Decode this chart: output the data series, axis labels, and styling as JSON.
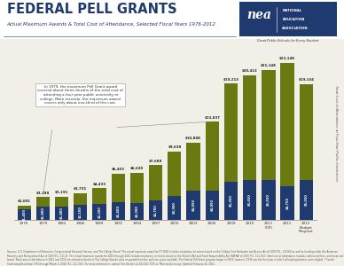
{
  "years": [
    "1976",
    "1979",
    "1982",
    "1986",
    "1989",
    "1991",
    "1994",
    "1997",
    "2000",
    "2003",
    "2006",
    "2009",
    "2010",
    "2011\n(CR)",
    "2011",
    "2012\nBudget\nRequest"
  ],
  "pell_max": [
    1400,
    1800,
    1800,
    2100,
    2200,
    2400,
    2300,
    2700,
    3300,
    4050,
    4050,
    5350,
    5550,
    5550,
    4750,
    5550
  ],
  "cost_total": [
    2001,
    3188,
    3191,
    3731,
    4433,
    6453,
    6630,
    7688,
    9638,
    10888,
    13837,
    19213,
    20413,
    21148,
    22148,
    19134
  ],
  "bar_color_pell": "#1e3a6e",
  "bar_color_cost": "#6b7a10",
  "bg_color": "#f2f0e6",
  "title": "FEDERAL PELL GRANTS",
  "subtitle": "Actual Maximum Awards & Total Cost of Attendance, Selected Fiscal Years 1976-2012",
  "annotation_text": "In 1979, the maximum Pell Grant award\ncovered about three-fourths of the total cost of\nattending a four-year public university or\ncollege. More recently, the maximum award\ncovers only about one-third of the cost.",
  "ylabel_right": "Total Cost of Attendance at Four-Year Public Institutions",
  "pell_labels": [
    "$1,400",
    "$1,800",
    "$1,800",
    "$2,100",
    "$2,200",
    "$2,400",
    "$2,300",
    "$2,700",
    "$3,300",
    "$4,050",
    "$4,050",
    "$5,350",
    "$5,550",
    "$5,550",
    "$4,750",
    "$5,550"
  ],
  "cost_labels": [
    "$2,001",
    "$3,188",
    "$3,191",
    "$3,731",
    "$4,433",
    "$6,453",
    "$6,630",
    "$7,688",
    "$9,638",
    "$10,888",
    "$13,837",
    "$19,213",
    "$20,413",
    "$21,148",
    "$22,148",
    "$19,134"
  ],
  "footer_text": "Sources: U.S. Department of Education, Congressional Research Service, and The College Board. The actual maximum award for FY 2010 includes mandatory increases based on the College Cost Reduction and Access Act of 2007 (P.L. 110-84) as well as funding under the American Recovery and Reinvestment Act of 2009 (P.L. 111-5). The actual maximum awards for 2010 through 2012 include mandatory increases based on the Student Aid and Fiscal Responsibility Act (SAFRA) of 2009 (P.L. 111-152). Total cost of attendance includes tuition and fees, and room and board. Total costs of attendance in 2011 and 2012 are estimates based on The College Board's data on growth from the past two years available. The Federal Pell Grant program began in 1973; however, 1976 was the first year in which all undergraduates were eligible. * Fourth Continuing Resolution (CR) through March 4, 2010 (P.L. 111-322). For more information, contact Tom Kersten at 202-822-7175 or TKersten@nea.org. Updated February 14, 2011.",
  "nea_bg": "#1e3a6e",
  "title_color": "#1e3a6e",
  "ylim_max": 25000
}
